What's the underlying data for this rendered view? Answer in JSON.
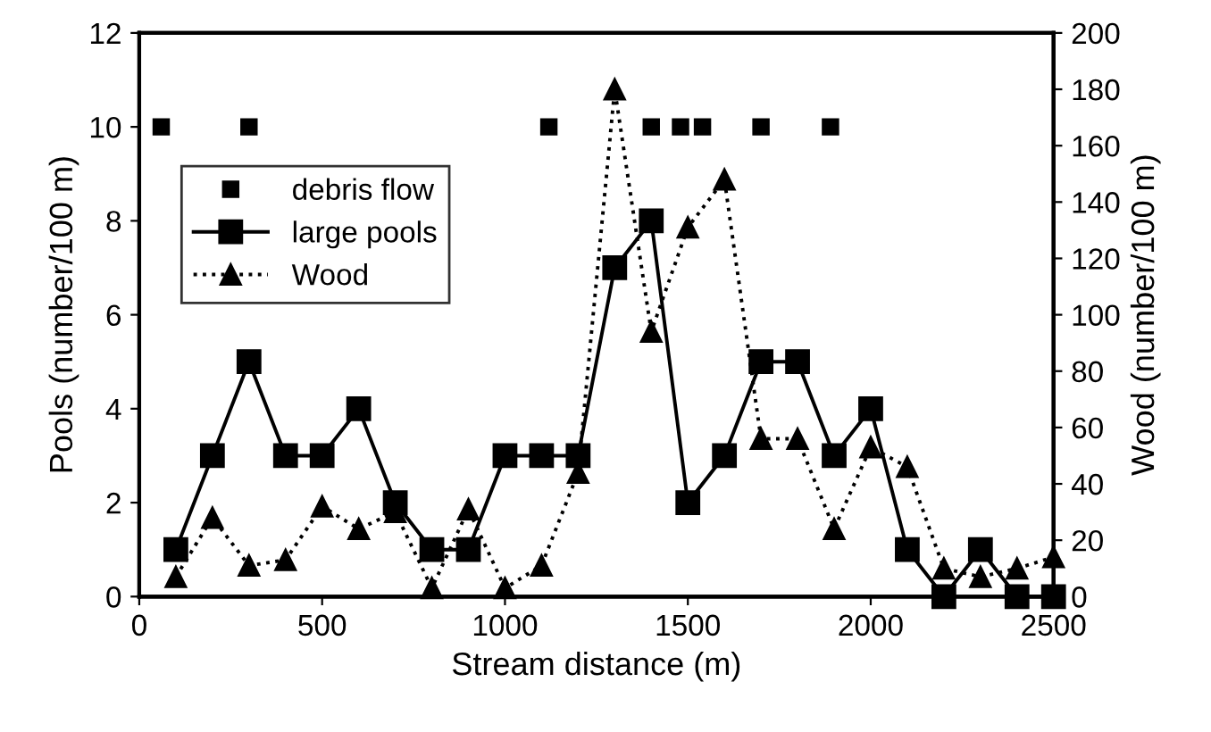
{
  "chart_data": {
    "type": "line",
    "xlabel": "Stream distance (m)",
    "ylabel": "Pools (number/100 m)",
    "y2label": "Wood (number/100 m)",
    "xlim": [
      0,
      2500
    ],
    "xticks": [
      0,
      500,
      1000,
      1500,
      2000,
      2500
    ],
    "ylim": [
      0,
      12
    ],
    "yticks": [
      0,
      2,
      4,
      6,
      8,
      10,
      12
    ],
    "y2lim": [
      0,
      200
    ],
    "y2ticks": [
      0,
      20,
      40,
      60,
      80,
      100,
      120,
      140,
      160,
      180,
      200
    ],
    "grid": false,
    "legend": "top left",
    "series": [
      {
        "name": "debris flow",
        "type": "scatter",
        "marker": "square",
        "color": "#000000",
        "x": [
          60,
          300,
          1120,
          1400,
          1480,
          1540,
          1700,
          1890
        ],
        "values": [
          10,
          10,
          10,
          10,
          10,
          10,
          10,
          10
        ]
      },
      {
        "name": "large pools",
        "marker": "square",
        "line_style": "solid",
        "color": "#000000",
        "x": [
          100,
          200,
          300,
          400,
          500,
          600,
          700,
          800,
          900,
          1000,
          1100,
          1200,
          1300,
          1400,
          1500,
          1600,
          1700,
          1800,
          1900,
          2000,
          2100,
          2200,
          2300,
          2400,
          2500
        ],
        "values": [
          1,
          3,
          5,
          3,
          3,
          4,
          2,
          1,
          1,
          3,
          3,
          3,
          7,
          8,
          2,
          3,
          5,
          5,
          3,
          4,
          1,
          0,
          1,
          0,
          0
        ]
      },
      {
        "name": "Wood",
        "axis": "y2",
        "marker": "triangle",
        "line_style": "dotted",
        "color": "#000000",
        "x": [
          100,
          200,
          300,
          400,
          500,
          600,
          700,
          800,
          900,
          1000,
          1100,
          1200,
          1300,
          1400,
          1500,
          1600,
          1700,
          1800,
          1900,
          2000,
          2100,
          2200,
          2300,
          2400,
          2500
        ],
        "values": [
          7,
          28,
          11,
          13,
          32,
          24,
          30,
          3,
          31,
          3,
          11,
          44,
          180,
          94,
          131,
          148,
          56,
          56,
          24,
          53,
          46,
          10,
          7,
          10,
          14
        ]
      }
    ]
  }
}
